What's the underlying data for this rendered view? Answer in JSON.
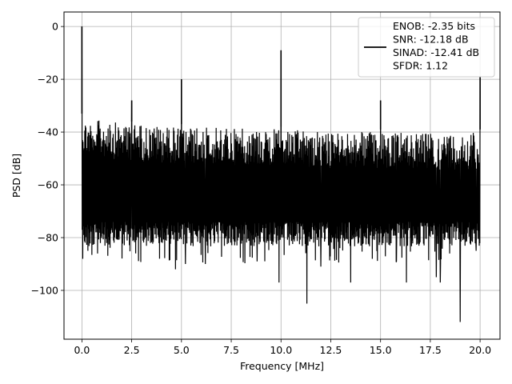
{
  "chart_data": {
    "type": "line",
    "xlabel": "Frequency [MHz]",
    "ylabel": "PSD [dB]",
    "xlim": [
      -0.9,
      21.0
    ],
    "ylim": [
      -118.5,
      5.5
    ],
    "xticks": [
      0.0,
      2.5,
      5.0,
      7.5,
      10.0,
      12.5,
      15.0,
      17.5,
      20.0
    ],
    "xtick_labels": [
      "0.0",
      "2.5",
      "5.0",
      "7.5",
      "10.0",
      "12.5",
      "15.0",
      "17.5",
      "20.0"
    ],
    "yticks": [
      0,
      -20,
      -40,
      -60,
      -80,
      -100
    ],
    "ytick_labels": [
      "0",
      "−20",
      "−40",
      "−60",
      "−80",
      "−100"
    ],
    "grid": true,
    "legend_position": "top-right",
    "series": [
      {
        "name": "ENOB: -2.35 bits\nSNR: -12.18 dB\nSINAD: -12.41 dB\nSFDR: 1.12",
        "color": "#000000",
        "noise_top": [
          [
            0.0,
            -31
          ],
          [
            0.2,
            -32
          ],
          [
            2.5,
            -34
          ],
          [
            5.0,
            -35
          ],
          [
            7.5,
            -35.5
          ],
          [
            10.0,
            -36
          ],
          [
            12.5,
            -37
          ],
          [
            15.0,
            -37
          ],
          [
            17.5,
            -37.5
          ],
          [
            20.0,
            -37
          ]
        ],
        "noise_floor_typical": -82,
        "spikes": [
          {
            "x": 0.0,
            "y": 0
          },
          {
            "x": 2.5,
            "y": -28
          },
          {
            "x": 5.0,
            "y": -20
          },
          {
            "x": 10.0,
            "y": -9
          },
          {
            "x": 15.0,
            "y": -28
          },
          {
            "x": 20.0,
            "y": -19
          }
        ],
        "dips": [
          {
            "x": 0.1,
            "y": -79
          },
          {
            "x": 0.3,
            "y": -85
          },
          {
            "x": 2.7,
            "y": -86
          },
          {
            "x": 3.9,
            "y": -88
          },
          {
            "x": 4.7,
            "y": -92
          },
          {
            "x": 5.2,
            "y": -90
          },
          {
            "x": 6.2,
            "y": -90
          },
          {
            "x": 8.8,
            "y": -89
          },
          {
            "x": 9.9,
            "y": -97
          },
          {
            "x": 11.3,
            "y": -105
          },
          {
            "x": 12.0,
            "y": -91
          },
          {
            "x": 13.5,
            "y": -97
          },
          {
            "x": 15.8,
            "y": -89
          },
          {
            "x": 16.3,
            "y": -97
          },
          {
            "x": 17.8,
            "y": -95
          },
          {
            "x": 18.0,
            "y": -97
          },
          {
            "x": 19.0,
            "y": -112
          },
          {
            "x": 19.8,
            "y": -85
          }
        ]
      }
    ]
  }
}
